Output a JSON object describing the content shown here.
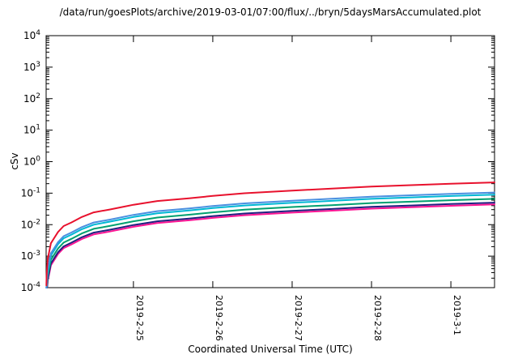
{
  "chart": {
    "background": "#ffffff",
    "axis_color": "#000000",
    "text_color": "#000000"
  },
  "chart_data": {
    "type": "line",
    "title": "/data/run/goesPlots/archive/2019-03-01/07:00/flux/../bryn/5daysMarsAccumulated.plot",
    "xlabel": "Coordinated Universal Time (UTC)",
    "ylabel": "cSv",
    "y_scale": "log",
    "ylim": [
      0.0001,
      10000
    ],
    "y_ticks_exponents": [
      4,
      3,
      2,
      1,
      0,
      -1,
      -2,
      -3,
      -4
    ],
    "x_range_days": [
      0,
      5.65
    ],
    "x_ticks": [
      {
        "t": 1.1,
        "label": "2019-2-25"
      },
      {
        "t": 2.1,
        "label": "2019-2-26"
      },
      {
        "t": 3.1,
        "label": "2019-2-27"
      },
      {
        "t": 4.1,
        "label": "2019-2-28"
      },
      {
        "t": 5.1,
        "label": "2019-3-1"
      }
    ],
    "grid": false,
    "legend": "none",
    "x_days": [
      0.003,
      0.006,
      0.012,
      0.02,
      0.035,
      0.06,
      0.1,
      0.15,
      0.22,
      0.32,
      0.45,
      0.6,
      0.8,
      1.1,
      1.4,
      1.8,
      2.1,
      2.5,
      3.1,
      3.6,
      4.1,
      4.6,
      5.1,
      5.65
    ],
    "series": [
      {
        "name": "red",
        "color": "#e8112d",
        "values": [
          0.000117,
          0.000234,
          0.000444,
          0.000818,
          0.00123,
          0.00257,
          0.0037,
          0.00584,
          0.00899,
          0.0118,
          0.0175,
          0.0245,
          0.0302,
          0.0428,
          0.0561,
          0.0687,
          0.0818,
          0.0993,
          0.121,
          0.139,
          0.161,
          0.179,
          0.199,
          0.22
        ]
      },
      {
        "name": "blue",
        "color": "#4a8fe0",
        "values": [
          5.6e-05,
          0.000112,
          0.000212,
          0.00039,
          0.000585,
          0.00123,
          0.00177,
          0.00279,
          0.00429,
          0.00565,
          0.00836,
          0.0117,
          0.0144,
          0.0204,
          0.0268,
          0.0328,
          0.039,
          0.0474,
          0.0576,
          0.0662,
          0.077,
          0.0855,
          0.0948,
          0.105
        ]
      },
      {
        "name": "cyan",
        "color": "#00b8d4",
        "values": [
          4.8e-05,
          9.6e-05,
          0.000182,
          0.000335,
          0.000502,
          0.00105,
          0.00151,
          0.00239,
          0.00368,
          0.00484,
          0.00717,
          0.01,
          0.0124,
          0.0175,
          0.023,
          0.0281,
          0.0335,
          0.0406,
          0.0494,
          0.0568,
          0.066,
          0.0733,
          0.0812,
          0.09
        ]
      },
      {
        "name": "green",
        "color": "#00a070",
        "values": [
          3.5e-05,
          7e-05,
          0.000133,
          0.000245,
          0.000368,
          0.000771,
          0.00111,
          0.00175,
          0.0027,
          0.00355,
          0.00526,
          0.00736,
          0.00906,
          0.0128,
          0.0168,
          0.0206,
          0.0245,
          0.0298,
          0.0362,
          0.0416,
          0.0484,
          0.0537,
          0.0596,
          0.066
        ]
      },
      {
        "name": "navy",
        "color": "#202080",
        "values": [
          2.7e-05,
          5.3e-05,
          0.000101,
          0.000186,
          0.000279,
          0.000584,
          0.000841,
          0.00133,
          0.00204,
          0.00269,
          0.00398,
          0.00558,
          0.00687,
          0.00973,
          0.0128,
          0.0156,
          0.0186,
          0.0226,
          0.0274,
          0.0315,
          0.0366,
          0.0407,
          0.0451,
          0.05
        ]
      },
      {
        "name": "magenta",
        "color": "#ff1493",
        "values": [
          2.3e-05,
          4.7e-05,
          8.9e-05,
          0.000164,
          0.000245,
          0.000514,
          0.00074,
          0.00117,
          0.0018,
          0.00237,
          0.0035,
          0.00491,
          0.00604,
          0.00857,
          0.0112,
          0.0137,
          0.0164,
          0.0199,
          0.0241,
          0.0278,
          0.0323,
          0.0358,
          0.0397,
          0.044
        ]
      }
    ]
  }
}
